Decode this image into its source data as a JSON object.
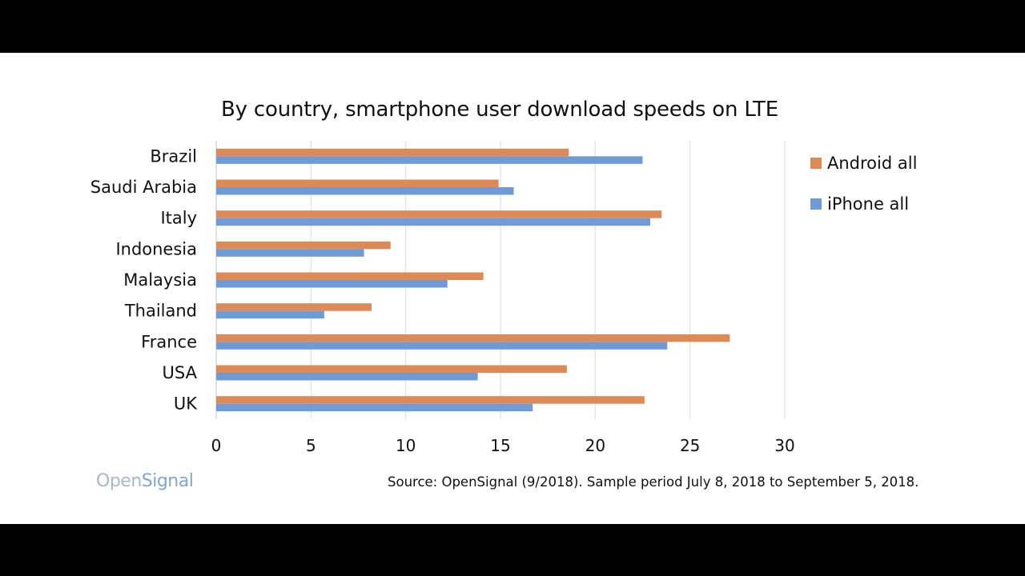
{
  "chart_data": {
    "type": "bar",
    "orientation": "horizontal",
    "title": "By country, smartphone user download speeds on LTE",
    "categories": [
      "Brazil",
      "Saudi Arabia",
      "Italy",
      "Indonesia",
      "Malaysia",
      "Thailand",
      "France",
      "USA",
      "UK"
    ],
    "series": [
      {
        "name": "Android all",
        "color": "#dd8a56",
        "values": [
          18.6,
          14.9,
          23.5,
          9.2,
          14.1,
          8.2,
          27.1,
          18.5,
          22.6
        ]
      },
      {
        "name": "iPhone all",
        "color": "#6f9bd6",
        "values": [
          22.5,
          15.7,
          22.9,
          7.8,
          12.2,
          5.7,
          23.8,
          13.8,
          16.7
        ]
      }
    ],
    "xlim": [
      0,
      30
    ],
    "x_ticks": [
      0,
      5,
      10,
      15,
      20,
      25,
      30
    ],
    "grid": "vertical",
    "legend_position": "right",
    "xlabel": "",
    "ylabel": ""
  },
  "branding": {
    "logo_part1": "Open",
    "logo_part2": "Signal"
  },
  "source_note": "Source: OpenSignal (9/2018). Sample period July 8, 2018 to September 5, 2018."
}
